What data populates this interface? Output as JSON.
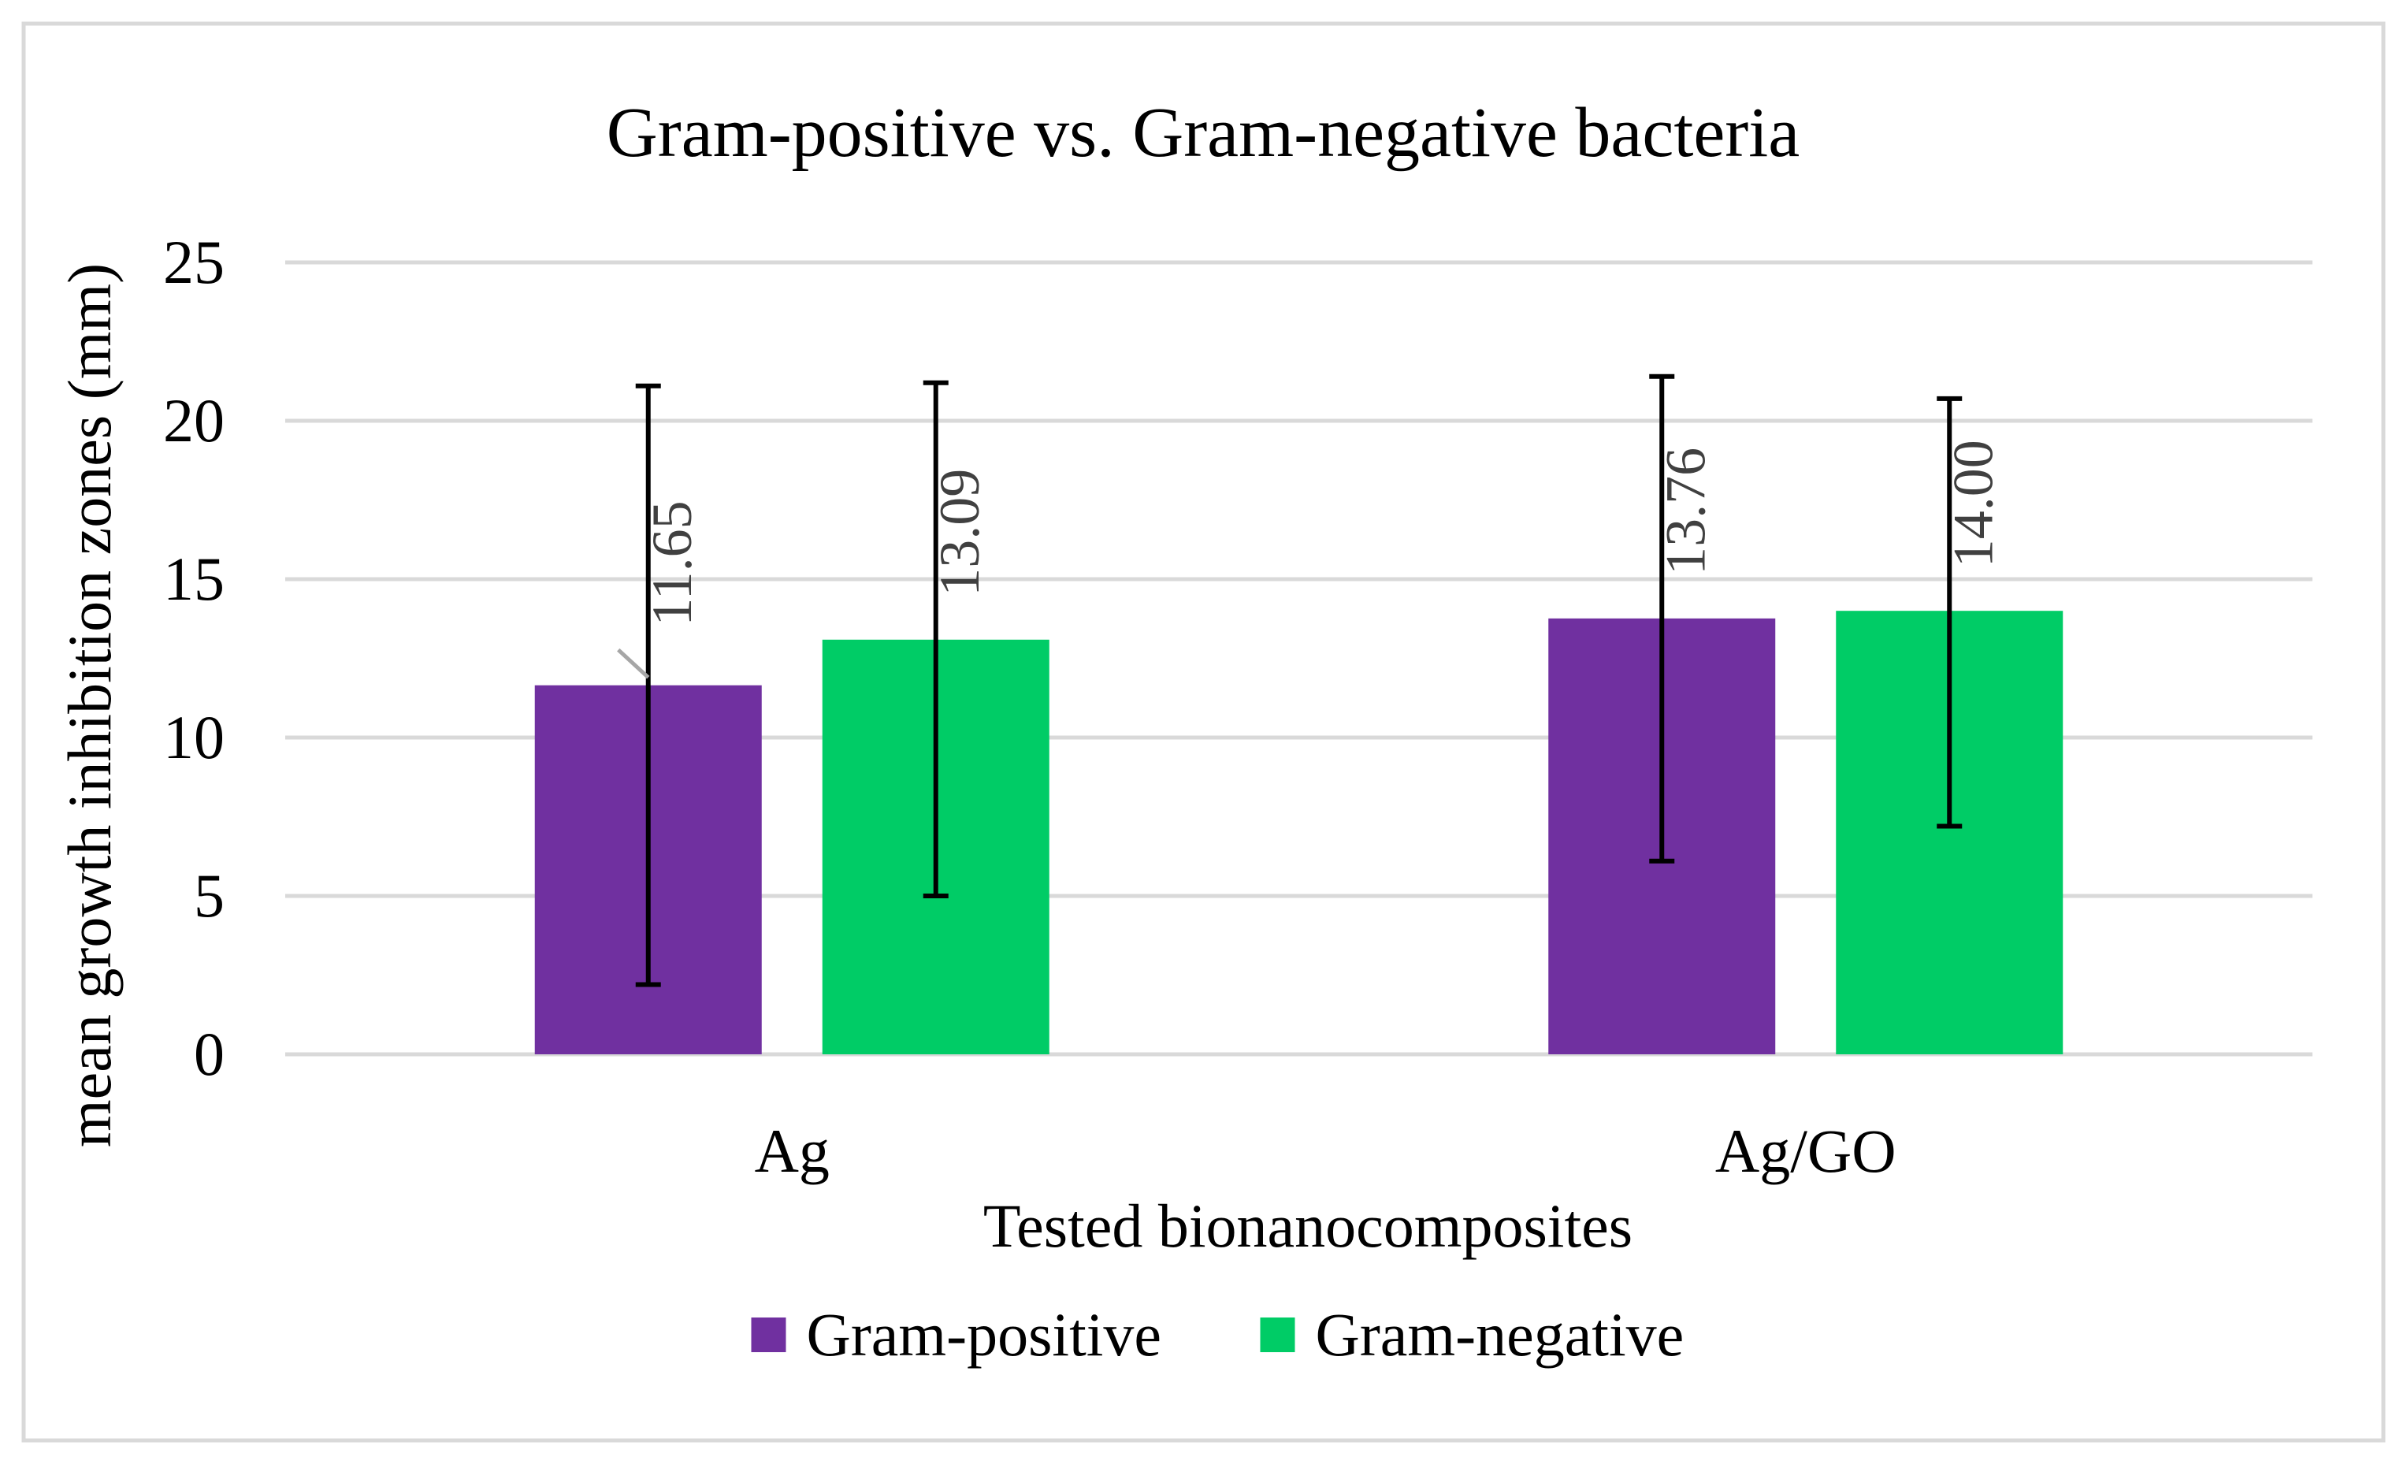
{
  "chart_data": {
    "type": "bar",
    "title": "Gram-positive vs. Gram-negative bacteria",
    "xlabel": "Tested bionanocomposites",
    "ylabel": "mean growth inhibition zones (mm)",
    "categories": [
      "Ag",
      "Ag/GO"
    ],
    "ylim": [
      0,
      25
    ],
    "yticks": [
      0,
      5,
      10,
      15,
      20,
      25
    ],
    "grid": true,
    "legend_position": "bottom",
    "series": [
      {
        "name": "Gram-positive",
        "color": "#7030a0",
        "values": [
          11.65,
          13.76
        ],
        "labels": [
          "11.65",
          "13.76"
        ],
        "error_low": [
          2.2,
          6.1
        ],
        "error_high": [
          21.1,
          21.4
        ]
      },
      {
        "name": "Gram-negative",
        "color": "#00cc66",
        "values": [
          13.09,
          14.0
        ],
        "labels": [
          "13.09",
          "14.00"
        ],
        "error_low": [
          5.0,
          7.2
        ],
        "error_high": [
          21.2,
          20.7
        ]
      }
    ]
  }
}
